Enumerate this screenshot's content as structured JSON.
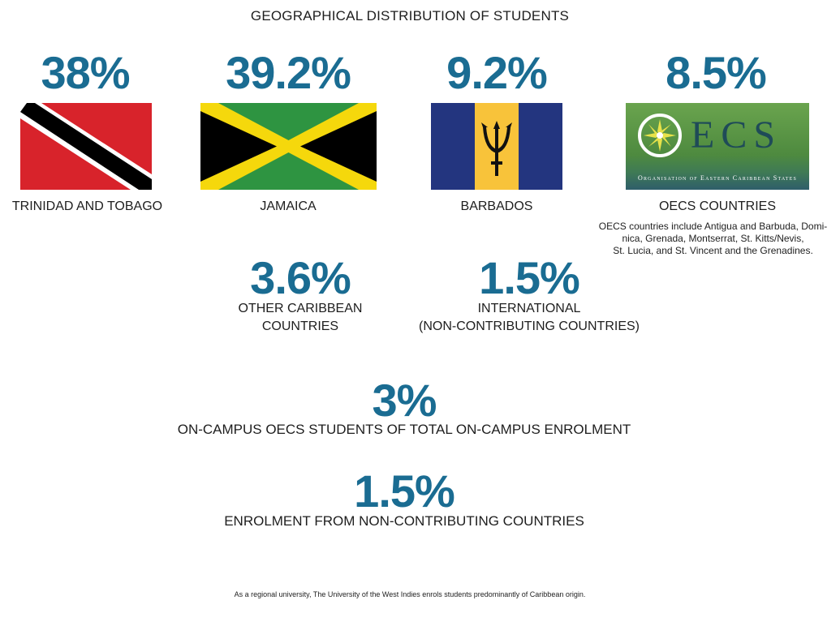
{
  "title": "GEOGRAPHICAL DISTRIBUTION OF STUDENTS",
  "regions": [
    {
      "percent": "38%",
      "label": "TRINIDAD AND TOBAGO",
      "flag_icon": "trinidad-and-tobago-flag"
    },
    {
      "percent": "39.2%",
      "label": "JAMAICA",
      "flag_icon": "jamaica-flag"
    },
    {
      "percent": "9.2%",
      "label": "BARBADOS",
      "flag_icon": "barbados-flag"
    },
    {
      "percent": "8.5%",
      "label": "OECS COUNTRIES",
      "flag_icon": "oecs-logo",
      "logo_text": "ECS",
      "logo_subtitle": "Organisation of Eastern Caribbean States",
      "note_lines": [
        "OECS countries include Antigua and Barbuda, Domi-",
        "nica, Grenada, Montserrat, St. Kitts/Nevis,",
        "St. Lucia, and St. Vincent and the Grenadines."
      ]
    }
  ],
  "secondary": [
    {
      "percent": "3.6%",
      "label_lines": [
        "OTHER CARIBBEAN",
        "COUNTRIES"
      ]
    },
    {
      "percent": "1.5%",
      "label_lines": [
        "INTERNATIONAL",
        "(NON-CONTRIBUTING COUNTRIES)"
      ]
    }
  ],
  "stats": [
    {
      "percent": "3%",
      "label": "ON-CAMPUS OECS STUDENTS OF TOTAL ON-CAMPUS ENROLMENT"
    },
    {
      "percent": "1.5%",
      "label": "ENROLMENT FROM NON-CONTRIBUTING COUNTRIES"
    }
  ],
  "footnote": "As a regional university, The University of the West Indies enrols students predominantly of Caribbean origin.",
  "colors": {
    "accent": "#1a6c92",
    "trinidad_red": "#d8232b",
    "jamaica_green": "#2e9441",
    "jamaica_gold": "#f5d80c",
    "barbados_blue": "#23357f",
    "barbados_gold": "#f8c33a",
    "oecs_green": "#5c9a48"
  }
}
